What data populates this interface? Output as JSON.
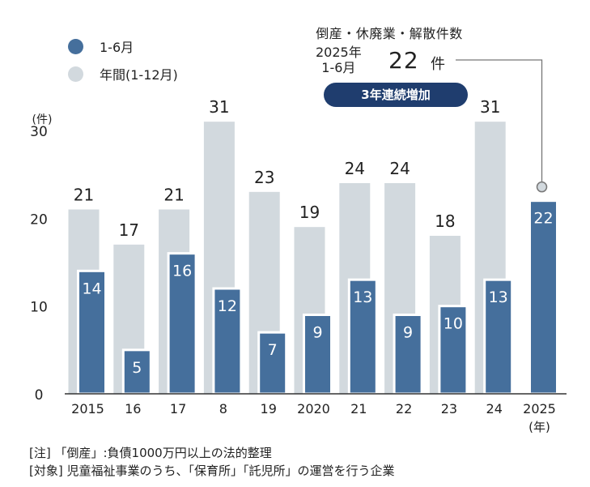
{
  "legend": {
    "items": [
      {
        "label": "1-6月",
        "color": "#456f9c"
      },
      {
        "label": "年間(1-12月)",
        "color": "#d2d9de"
      }
    ]
  },
  "callout": {
    "title": "倒産・休廃業・解散件数",
    "period_year": "2025年",
    "period_months": "1-6月",
    "count": "22",
    "unit": "件",
    "badge": "3年連続増加"
  },
  "chart_data": {
    "type": "bar",
    "categories": [
      "2015",
      "16",
      "17",
      "8",
      "19",
      "2020",
      "21",
      "22",
      "23",
      "24",
      "2025"
    ],
    "series": [
      {
        "name": "年間(1-12月)",
        "color": "#d2d9de",
        "values": [
          21,
          17,
          21,
          31,
          23,
          19,
          24,
          24,
          18,
          31,
          null
        ]
      },
      {
        "name": "1-6月",
        "color": "#456f9c",
        "values": [
          14,
          5,
          16,
          12,
          7,
          9,
          13,
          9,
          10,
          13,
          22
        ]
      }
    ],
    "y_unit": "(件)",
    "x_unit": "(年)",
    "yticks": [
      0,
      10,
      20,
      30
    ],
    "ylim": [
      0,
      30
    ],
    "grid": false
  },
  "footnotes": [
    "[注] 「倒産」:負債1000万円以上の法的整理",
    "[対象] 児童福祉事業のうち、「保育所」「託児所」の運営を行う企業"
  ]
}
